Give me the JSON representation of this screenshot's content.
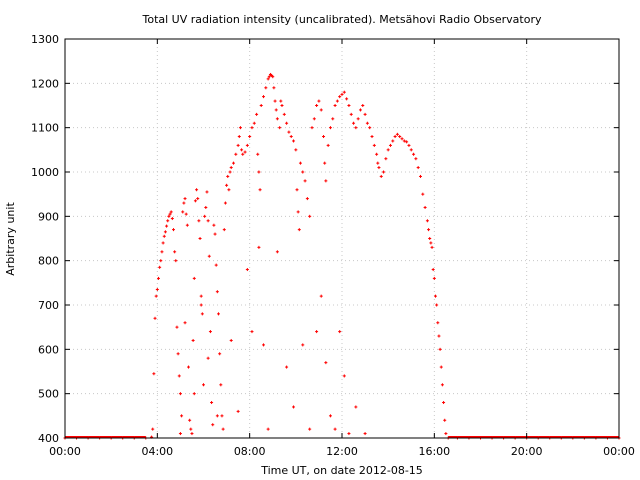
{
  "chart_data": {
    "type": "scatter",
    "title": "Total UV radiation intensity (uncalibrated). Metsähovi Radio Observatory",
    "xlabel": "Time UT, on date 2012-08-15",
    "ylabel": "Arbitrary unit",
    "xlim": [
      0,
      24
    ],
    "ylim": [
      400,
      1300
    ],
    "x_ticks": [
      0,
      4,
      8,
      12,
      16,
      20,
      24
    ],
    "x_tick_labels": [
      "00:00",
      "04:00",
      "08:00",
      "12:00",
      "16:00",
      "20:00",
      "00:00"
    ],
    "y_ticks": [
      400,
      500,
      600,
      700,
      800,
      900,
      1000,
      1100,
      1200,
      1300
    ],
    "y_tick_labels": [
      "400",
      "500",
      "600",
      "700",
      "800",
      "900",
      "1000",
      "1100",
      "1200",
      "1300"
    ],
    "grid": true,
    "marker_color": "#ff0000",
    "series": [
      {
        "x_unit": "hours UT",
        "points": [
          [
            0.0,
            400
          ],
          [
            0.5,
            400
          ],
          [
            1.0,
            400
          ],
          [
            1.5,
            400
          ],
          [
            2.0,
            400
          ],
          [
            2.5,
            400
          ],
          [
            3.0,
            400
          ],
          [
            3.5,
            400
          ],
          [
            3.75,
            402
          ],
          [
            3.8,
            420
          ],
          [
            3.85,
            545
          ],
          [
            3.9,
            670
          ],
          [
            3.95,
            720
          ],
          [
            4.0,
            735
          ],
          [
            4.05,
            760
          ],
          [
            4.1,
            785
          ],
          [
            4.15,
            800
          ],
          [
            4.2,
            820
          ],
          [
            4.25,
            840
          ],
          [
            4.3,
            855
          ],
          [
            4.35,
            865
          ],
          [
            4.4,
            878
          ],
          [
            4.45,
            890
          ],
          [
            4.5,
            900
          ],
          [
            4.55,
            905
          ],
          [
            4.6,
            910
          ],
          [
            4.65,
            895
          ],
          [
            4.7,
            870
          ],
          [
            4.75,
            820
          ],
          [
            4.8,
            800
          ],
          [
            4.85,
            650
          ],
          [
            4.9,
            590
          ],
          [
            4.95,
            540
          ],
          [
            5.0,
            500
          ],
          [
            5.05,
            450
          ],
          [
            5.1,
            910
          ],
          [
            5.15,
            930
          ],
          [
            5.2,
            940
          ],
          [
            5.25,
            905
          ],
          [
            5.3,
            880
          ],
          [
            5.35,
            560
          ],
          [
            5.4,
            440
          ],
          [
            5.45,
            420
          ],
          [
            5.5,
            410
          ],
          [
            5.55,
            620
          ],
          [
            5.6,
            760
          ],
          [
            5.65,
            935
          ],
          [
            5.7,
            960
          ],
          [
            5.75,
            940
          ],
          [
            5.8,
            890
          ],
          [
            5.85,
            850
          ],
          [
            5.9,
            720
          ],
          [
            5.95,
            680
          ],
          [
            6.0,
            520
          ],
          [
            6.05,
            900
          ],
          [
            6.1,
            920
          ],
          [
            6.15,
            955
          ],
          [
            6.2,
            890
          ],
          [
            6.25,
            810
          ],
          [
            6.3,
            640
          ],
          [
            6.35,
            480
          ],
          [
            6.4,
            430
          ],
          [
            6.45,
            880
          ],
          [
            6.5,
            860
          ],
          [
            6.55,
            790
          ],
          [
            6.6,
            730
          ],
          [
            6.65,
            680
          ],
          [
            6.7,
            590
          ],
          [
            6.75,
            520
          ],
          [
            6.8,
            450
          ],
          [
            6.85,
            420
          ],
          [
            6.9,
            870
          ],
          [
            6.95,
            930
          ],
          [
            7.0,
            970
          ],
          [
            7.05,
            990
          ],
          [
            7.1,
            960
          ],
          [
            7.15,
            1000
          ],
          [
            7.2,
            1010
          ],
          [
            7.3,
            1020
          ],
          [
            7.4,
            1040
          ],
          [
            7.5,
            1060
          ],
          [
            7.55,
            1080
          ],
          [
            7.6,
            1100
          ],
          [
            7.65,
            1050
          ],
          [
            7.7,
            1040
          ],
          [
            7.8,
            1045
          ],
          [
            7.9,
            1060
          ],
          [
            8.0,
            1080
          ],
          [
            8.1,
            1100
          ],
          [
            8.2,
            1110
          ],
          [
            8.3,
            1130
          ],
          [
            8.35,
            1040
          ],
          [
            8.4,
            1000
          ],
          [
            8.45,
            960
          ],
          [
            8.5,
            1150
          ],
          [
            8.6,
            1170
          ],
          [
            8.7,
            1190
          ],
          [
            8.8,
            1210
          ],
          [
            8.85,
            1215
          ],
          [
            8.9,
            1220
          ],
          [
            8.95,
            1218
          ],
          [
            9.0,
            1215
          ],
          [
            9.05,
            1190
          ],
          [
            9.1,
            1160
          ],
          [
            9.15,
            1140
          ],
          [
            9.2,
            1120
          ],
          [
            9.3,
            1100
          ],
          [
            9.35,
            1160
          ],
          [
            9.4,
            1150
          ],
          [
            9.5,
            1130
          ],
          [
            9.6,
            1110
          ],
          [
            9.7,
            1090
          ],
          [
            9.8,
            1080
          ],
          [
            9.9,
            1070
          ],
          [
            10.0,
            1050
          ],
          [
            10.05,
            960
          ],
          [
            10.1,
            910
          ],
          [
            10.15,
            870
          ],
          [
            10.2,
            1020
          ],
          [
            10.3,
            1000
          ],
          [
            10.4,
            980
          ],
          [
            10.5,
            940
          ],
          [
            10.6,
            900
          ],
          [
            10.7,
            1100
          ],
          [
            10.8,
            1120
          ],
          [
            10.9,
            1150
          ],
          [
            11.0,
            1160
          ],
          [
            11.1,
            1140
          ],
          [
            11.2,
            1080
          ],
          [
            11.25,
            1020
          ],
          [
            11.3,
            980
          ],
          [
            11.4,
            1060
          ],
          [
            11.5,
            1100
          ],
          [
            11.6,
            1120
          ],
          [
            11.7,
            1150
          ],
          [
            11.8,
            1160
          ],
          [
            11.9,
            1170
          ],
          [
            12.0,
            1175
          ],
          [
            12.1,
            1180
          ],
          [
            12.2,
            1165
          ],
          [
            12.3,
            1150
          ],
          [
            12.4,
            1130
          ],
          [
            12.5,
            1110
          ],
          [
            12.6,
            1100
          ],
          [
            12.7,
            1120
          ],
          [
            12.8,
            1140
          ],
          [
            12.9,
            1150
          ],
          [
            13.0,
            1130
          ],
          [
            13.1,
            1110
          ],
          [
            13.2,
            1100
          ],
          [
            13.3,
            1080
          ],
          [
            13.4,
            1060
          ],
          [
            13.5,
            1040
          ],
          [
            13.55,
            1020
          ],
          [
            13.6,
            1010
          ],
          [
            13.7,
            990
          ],
          [
            13.8,
            1000
          ],
          [
            13.9,
            1030
          ],
          [
            14.0,
            1050
          ],
          [
            14.1,
            1060
          ],
          [
            14.2,
            1070
          ],
          [
            14.3,
            1080
          ],
          [
            14.4,
            1085
          ],
          [
            14.5,
            1080
          ],
          [
            14.6,
            1075
          ],
          [
            14.7,
            1070
          ],
          [
            14.8,
            1068
          ],
          [
            14.9,
            1060
          ],
          [
            15.0,
            1050
          ],
          [
            15.1,
            1040
          ],
          [
            15.2,
            1030
          ],
          [
            15.3,
            1010
          ],
          [
            15.4,
            990
          ],
          [
            15.5,
            950
          ],
          [
            15.6,
            920
          ],
          [
            15.7,
            890
          ],
          [
            15.75,
            870
          ],
          [
            15.8,
            850
          ],
          [
            15.85,
            840
          ],
          [
            15.9,
            830
          ],
          [
            15.95,
            780
          ],
          [
            16.0,
            760
          ],
          [
            16.05,
            720
          ],
          [
            16.1,
            700
          ],
          [
            16.15,
            660
          ],
          [
            16.2,
            630
          ],
          [
            16.25,
            600
          ],
          [
            16.3,
            560
          ],
          [
            16.35,
            520
          ],
          [
            16.4,
            480
          ],
          [
            16.45,
            440
          ],
          [
            16.5,
            410
          ],
          [
            16.6,
            400
          ],
          [
            17.0,
            400
          ],
          [
            17.5,
            400
          ],
          [
            18.0,
            400
          ],
          [
            18.5,
            400
          ],
          [
            19.0,
            400
          ],
          [
            19.5,
            400
          ],
          [
            20.0,
            400
          ],
          [
            20.5,
            400
          ],
          [
            21.0,
            400
          ],
          [
            21.5,
            400
          ],
          [
            22.0,
            400
          ],
          [
            22.5,
            400
          ],
          [
            23.0,
            400
          ],
          [
            23.5,
            400
          ],
          [
            24.0,
            400
          ],
          [
            5.0,
            410
          ],
          [
            5.2,
            660
          ],
          [
            5.6,
            500
          ],
          [
            5.9,
            700
          ],
          [
            6.2,
            580
          ],
          [
            6.6,
            450
          ],
          [
            7.2,
            620
          ],
          [
            7.5,
            460
          ],
          [
            7.9,
            780
          ],
          [
            8.1,
            640
          ],
          [
            8.4,
            830
          ],
          [
            8.6,
            610
          ],
          [
            8.8,
            420
          ],
          [
            9.2,
            820
          ],
          [
            9.6,
            560
          ],
          [
            9.9,
            470
          ],
          [
            10.3,
            610
          ],
          [
            10.6,
            420
          ],
          [
            10.9,
            640
          ],
          [
            11.1,
            720
          ],
          [
            11.3,
            570
          ],
          [
            11.5,
            450
          ],
          [
            11.7,
            420
          ],
          [
            11.9,
            640
          ],
          [
            12.1,
            540
          ],
          [
            12.3,
            410
          ],
          [
            12.6,
            470
          ],
          [
            13.0,
            410
          ]
        ]
      }
    ]
  }
}
